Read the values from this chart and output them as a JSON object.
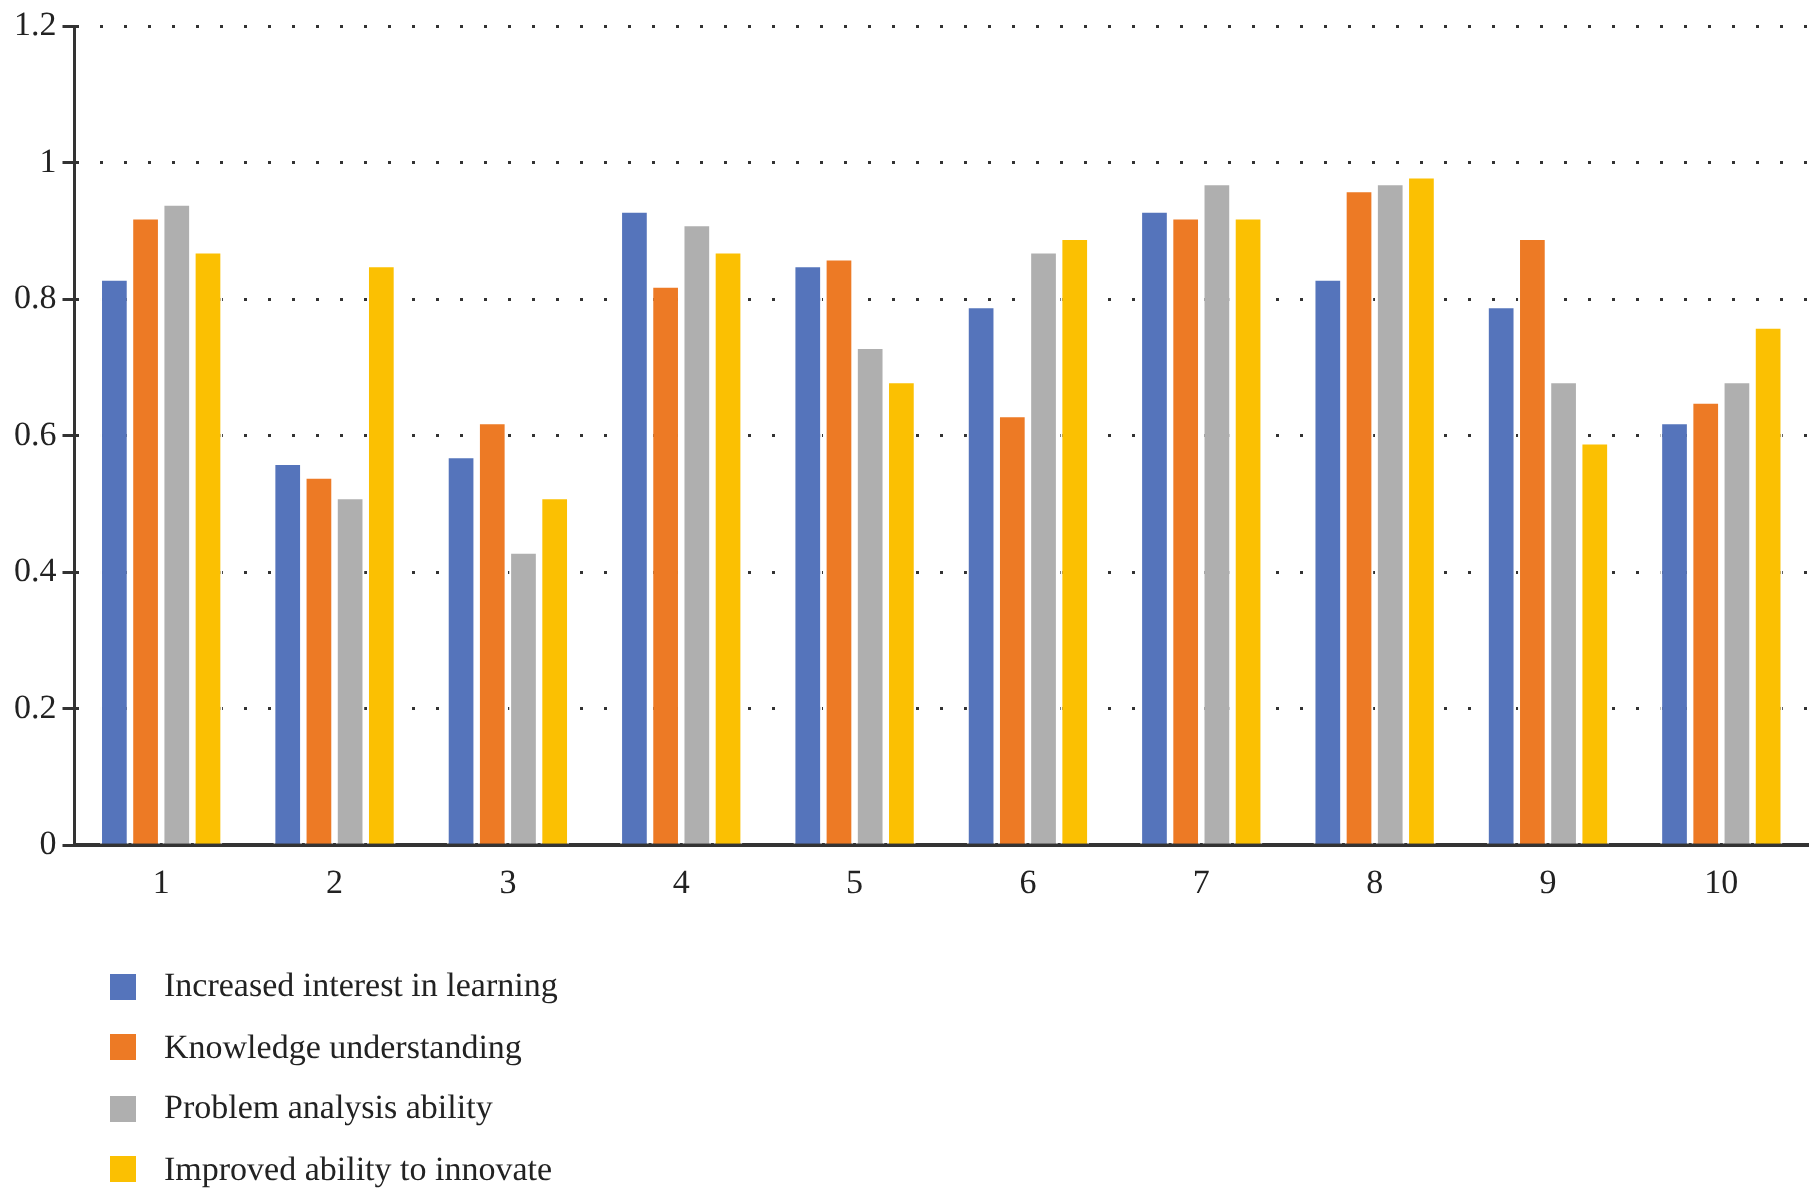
{
  "chart_data": {
    "type": "bar",
    "categories": [
      "1",
      "2",
      "3",
      "4",
      "5",
      "6",
      "7",
      "8",
      "9",
      "10"
    ],
    "series": [
      {
        "name": "Increased interest in learning",
        "color": "#5574bb",
        "values": [
          0.83,
          0.56,
          0.57,
          0.93,
          0.85,
          0.79,
          0.93,
          0.83,
          0.79,
          0.62
        ]
      },
      {
        "name": "Knowledge understanding",
        "color": "#ed7a25",
        "values": [
          0.92,
          0.54,
          0.62,
          0.82,
          0.86,
          0.63,
          0.92,
          0.96,
          0.89,
          0.65
        ]
      },
      {
        "name": "Problem analysis ability",
        "color": "#afafaf",
        "values": [
          0.94,
          0.51,
          0.43,
          0.91,
          0.73,
          0.87,
          0.97,
          0.97,
          0.68,
          0.68
        ]
      },
      {
        "name": "Improved ability to innovate",
        "color": "#fbc002",
        "values": [
          0.87,
          0.85,
          0.51,
          0.87,
          0.68,
          0.89,
          0.92,
          0.98,
          0.59,
          0.76
        ]
      }
    ],
    "ylim": [
      0,
      1.2
    ],
    "yticks": [
      0,
      0.2,
      0.4,
      0.6,
      0.8,
      1,
      1.2
    ],
    "grid": "y",
    "legend": "bottom left"
  }
}
